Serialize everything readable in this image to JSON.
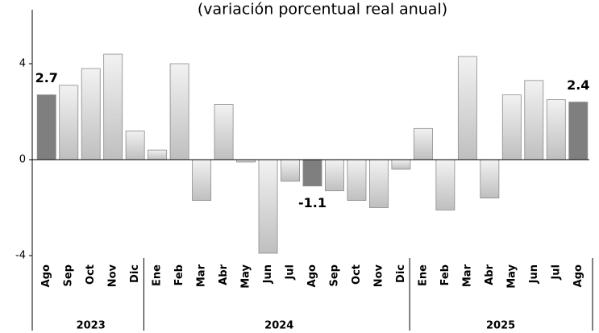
{
  "chart_data": {
    "type": "bar",
    "subtitle": "(variación porcentual real anual)",
    "categories": [
      "Ago",
      "Sep",
      "Oct",
      "Nov",
      "Dic",
      "Ene",
      "Feb",
      "Mar",
      "Abr",
      "May",
      "Jun",
      "Jul",
      "Ago",
      "Sep",
      "Oct",
      "Nov",
      "Dic",
      "Ene",
      "Feb",
      "Mar",
      "Abr",
      "May",
      "Jun",
      "Jul",
      "Ago"
    ],
    "values": [
      2.7,
      3.1,
      3.8,
      4.4,
      1.2,
      0.4,
      4.0,
      -1.7,
      2.3,
      -0.1,
      -3.9,
      -0.9,
      -1.1,
      -1.3,
      -1.7,
      -2.0,
      -0.4,
      1.3,
      -2.1,
      4.3,
      -1.6,
      2.7,
      3.3,
      2.5,
      2.4
    ],
    "value_labels": [
      "2.7",
      null,
      null,
      null,
      null,
      null,
      null,
      null,
      null,
      null,
      null,
      null,
      "-1.1",
      null,
      null,
      null,
      null,
      null,
      null,
      null,
      null,
      null,
      null,
      null,
      "2.4"
    ],
    "colors": [
      "#7f7f7f",
      "#d9d9d9",
      "#d9d9d9",
      "#d9d9d9",
      "#d9d9d9",
      "#d9d9d9",
      "#d9d9d9",
      "#d9d9d9",
      "#d9d9d9",
      "#d9d9d9",
      "#d9d9d9",
      "#d9d9d9",
      "#7f7f7f",
      "#d9d9d9",
      "#d9d9d9",
      "#d9d9d9",
      "#d9d9d9",
      "#d9d9d9",
      "#d9d9d9",
      "#d9d9d9",
      "#d9d9d9",
      "#d9d9d9",
      "#d9d9d9",
      "#d9d9d9",
      "#7f7f7f"
    ],
    "groups": [
      {
        "name": "2023",
        "count": 5
      },
      {
        "name": "2024",
        "count": 12
      },
      {
        "name": "2025",
        "count": 8
      }
    ],
    "ylim": [
      -4,
      6
    ],
    "yticks": [
      -4,
      0,
      4
    ],
    "grid": false
  }
}
